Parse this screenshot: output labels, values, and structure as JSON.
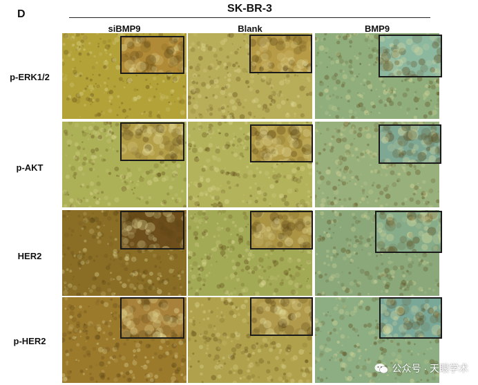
{
  "figure": {
    "panel_letter": "D",
    "cell_line": "SK-BR-3",
    "columns": [
      "siBMP9",
      "Blank",
      "BMP9"
    ],
    "rows": [
      "p-ERK1/2",
      "p-AKT",
      "HER2",
      "p-HER2"
    ]
  },
  "tile_colors": [
    [
      "#b3a238",
      "#b8ad58",
      "#8fae7c"
    ],
    [
      "#acb056",
      "#b3b35b",
      "#98b07c"
    ],
    [
      "#8a6e26",
      "#a3aa55",
      "#8aa87a"
    ],
    [
      "#9c7a2c",
      "#b0a24c",
      "#8dae82"
    ]
  ],
  "inset_colors": [
    [
      "#b08a36",
      "#b79b46",
      "#8db8a0"
    ],
    [
      "#b49f49",
      "#b39c48",
      "#7ea894"
    ],
    [
      "#6e4f1c",
      "#ab9444",
      "#86ac8a"
    ],
    [
      "#a8823a",
      "#b19a4c",
      "#7aa898"
    ]
  ],
  "watermark": {
    "text": "公众号 · 天眼学术",
    "icon": "wechat-icon"
  }
}
